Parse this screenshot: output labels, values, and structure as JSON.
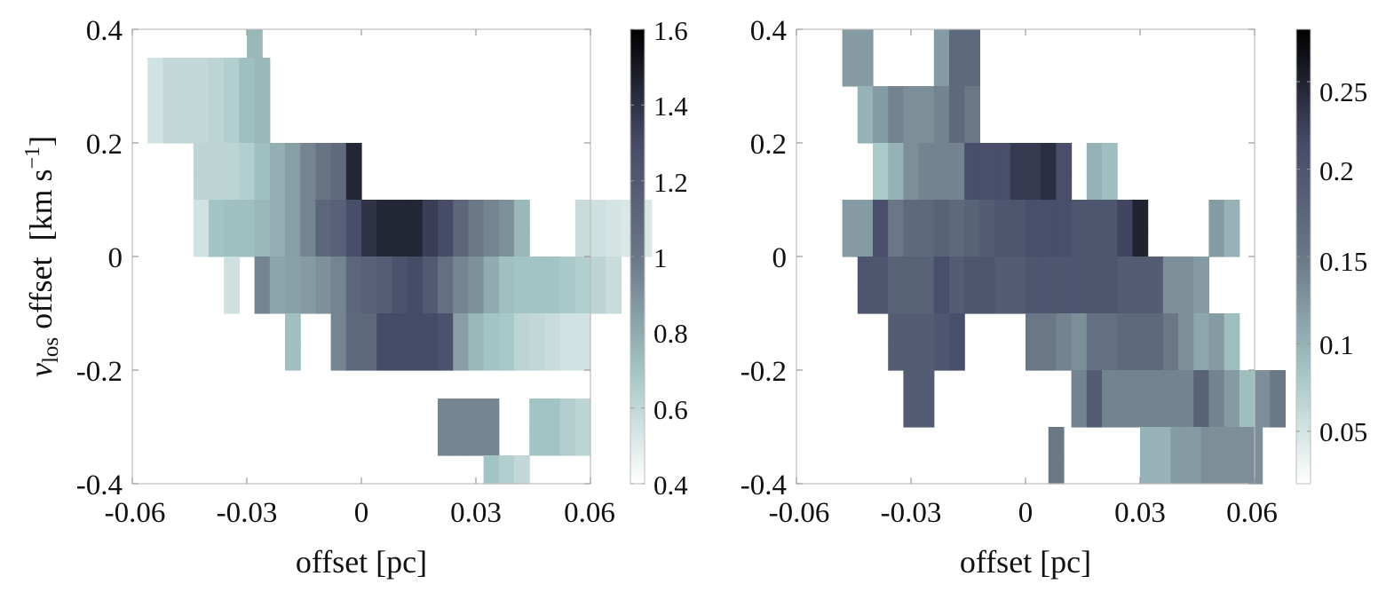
{
  "chart_data": [
    {
      "type": "heatmap",
      "panel": "left",
      "xlabel": "offset [pc]",
      "ylabel_var": "v",
      "ylabel_sub": "los",
      "ylabel_rest": " offset  [km s",
      "ylabel_sup": "−1",
      "ylabel_end": "]",
      "xlim": [
        -0.06,
        0.06
      ],
      "ylim": [
        -0.4,
        0.4
      ],
      "xticks": [
        "-0.06",
        "-0.03",
        "0",
        "0.03",
        "0.06"
      ],
      "yticks": [
        "0.4",
        "0.2",
        "0",
        "-0.2",
        "-0.4"
      ],
      "cbar_ticks": [
        "1.6",
        "1.4",
        "1.2",
        "1",
        "0.8",
        "0.6",
        "0.4"
      ],
      "clim": [
        0.4,
        1.6
      ],
      "colormap": [
        "#ffffff",
        "#a3c4c4",
        "#6a7786",
        "#464b68",
        "#000000"
      ],
      "cell_size": {
        "dx": 0.004,
        "dy": 0.05
      },
      "rows": [
        {
          "y": 0.375,
          "x0": -0.03,
          "values": [
            0.75
          ]
        },
        {
          "y": 0.325,
          "x0": -0.056,
          "values": [
            0.55,
            0.6,
            0.6,
            0.6,
            0.62,
            0.65,
            0.72,
            0.75
          ]
        },
        {
          "y": 0.275,
          "x0": -0.056,
          "values": [
            0.55,
            0.6,
            0.6,
            0.6,
            0.62,
            0.65,
            0.72,
            0.75
          ]
        },
        {
          "y": 0.225,
          "x0": -0.056,
          "values": [
            0.55,
            0.6,
            0.6,
            0.6,
            0.62,
            0.65,
            0.72,
            0.75
          ]
        },
        {
          "y": 0.175,
          "x0": -0.044,
          "values": [
            0.62,
            0.62,
            0.62,
            0.65,
            0.72,
            0.78,
            0.85,
            0.95,
            1.02,
            1.08,
            1.45
          ]
        },
        {
          "y": 0.125,
          "x0": -0.044,
          "values": [
            0.62,
            0.62,
            0.62,
            0.65,
            0.72,
            0.78,
            0.85,
            0.95,
            1.02,
            1.08,
            1.45
          ]
        },
        {
          "y": 0.075,
          "x0": -0.044,
          "values": [
            0.55,
            0.7,
            0.72,
            0.72,
            0.75,
            0.78,
            0.85,
            0.95,
            1.12,
            1.15,
            1.28,
            1.4,
            1.45,
            1.45,
            1.45,
            1.35,
            1.3,
            1.12,
            1.0,
            0.95,
            0.9,
            0.75,
            null,
            null,
            null,
            0.58,
            0.56,
            0.54,
            0.52,
            0.52
          ]
        },
        {
          "y": 0.025,
          "x0": -0.044,
          "values": [
            0.55,
            0.7,
            0.72,
            0.72,
            0.75,
            0.78,
            0.85,
            0.95,
            1.12,
            1.15,
            1.28,
            1.4,
            1.45,
            1.45,
            1.45,
            1.35,
            1.3,
            1.12,
            1.0,
            0.95,
            0.9,
            0.75,
            null,
            null,
            null,
            0.58,
            0.56,
            0.54,
            0.52,
            0.52
          ]
        },
        {
          "y": -0.025,
          "x0": -0.036,
          "values": [
            0.56,
            null,
            0.95,
            0.82,
            0.84,
            0.86,
            0.9,
            0.95,
            1.12,
            1.15,
            1.18,
            1.25,
            1.3,
            1.2,
            1.05,
            0.95,
            0.9,
            0.8,
            0.72,
            0.7,
            0.7,
            0.7,
            0.68,
            0.65,
            0.62,
            0.58
          ]
        },
        {
          "y": -0.075,
          "x0": -0.036,
          "values": [
            0.56,
            null,
            0.95,
            0.82,
            0.84,
            0.86,
            0.9,
            0.95,
            1.12,
            1.15,
            1.18,
            1.25,
            1.3,
            1.2,
            1.05,
            0.95,
            0.9,
            0.8,
            0.72,
            0.7,
            0.7,
            0.7,
            0.68,
            0.65,
            0.62,
            0.58
          ]
        },
        {
          "y": -0.125,
          "x0": -0.02,
          "values": [
            0.72,
            null,
            null,
            0.95,
            1.1,
            1.1,
            1.3,
            1.3,
            1.3,
            1.3,
            1.25,
            0.85,
            0.75,
            0.7,
            0.68,
            0.62,
            0.6,
            0.58,
            0.55,
            0.55
          ]
        },
        {
          "y": -0.175,
          "x0": -0.02,
          "values": [
            0.72,
            null,
            null,
            0.95,
            1.1,
            1.1,
            1.3,
            1.3,
            1.3,
            1.3,
            1.25,
            0.85,
            0.75,
            0.7,
            0.68,
            0.62,
            0.6,
            0.58,
            0.55,
            0.55
          ]
        },
        {
          "y": -0.275,
          "x0": 0.02,
          "values": [
            0.95,
            0.95,
            0.95,
            0.95,
            null,
            null,
            0.7,
            0.7,
            0.65,
            0.62
          ]
        },
        {
          "y": -0.325,
          "x0": 0.02,
          "values": [
            0.95,
            0.95,
            0.95,
            0.95,
            null,
            null,
            0.7,
            0.7,
            0.65,
            0.62
          ]
        },
        {
          "y": -0.375,
          "x0": 0.032,
          "values": [
            0.7,
            0.65,
            0.6,
            null
          ]
        }
      ]
    },
    {
      "type": "heatmap",
      "panel": "right",
      "xlabel": "offset [pc]",
      "xlim": [
        -0.06,
        0.06
      ],
      "ylim": [
        -0.4,
        0.4
      ],
      "xticks": [
        "-0.06",
        "-0.03",
        "0",
        "0.03",
        "0.06"
      ],
      "yticks": [
        "0.4",
        "0.2",
        "0",
        "-0.2",
        "-0.4"
      ],
      "cbar_ticks": [
        "0.25",
        "0.2",
        "0.15",
        "0.1",
        "0.05"
      ],
      "clim": [
        0.02,
        0.28
      ],
      "colormap": [
        "#ffffff",
        "#a3c4c4",
        "#6a7786",
        "#464b68",
        "#000000"
      ],
      "cell_size": {
        "dx": 0.004,
        "dy": 0.05
      },
      "rows": [
        {
          "y": 0.35,
          "h": 0.1,
          "x0": -0.048,
          "values": [
            0.12,
            0.12,
            null,
            null,
            null,
            null,
            0.12,
            0.17,
            0.17
          ]
        },
        {
          "y": 0.275,
          "x0": -0.044,
          "values": [
            0.1,
            0.12,
            0.14,
            0.13,
            0.13,
            0.14,
            0.17,
            0.15
          ]
        },
        {
          "y": 0.225,
          "x0": -0.044,
          "values": [
            0.1,
            0.12,
            0.14,
            0.13,
            0.13,
            0.14,
            0.17,
            0.15
          ]
        },
        {
          "y": 0.175,
          "x0": -0.04,
          "values": [
            0.08,
            0.1,
            0.13,
            0.14,
            0.14,
            0.14,
            0.21,
            0.21,
            0.21,
            0.23,
            0.23,
            0.24,
            0.21,
            null,
            0.1,
            0.09
          ]
        },
        {
          "y": 0.125,
          "x0": -0.04,
          "values": [
            0.08,
            0.1,
            0.13,
            0.14,
            0.14,
            0.14,
            0.21,
            0.21,
            0.21,
            0.23,
            0.23,
            0.24,
            0.21,
            null,
            0.1,
            0.09
          ]
        },
        {
          "y": 0.075,
          "x0": -0.048,
          "values": [
            0.12,
            0.12,
            0.21,
            0.15,
            0.17,
            0.17,
            0.18,
            0.17,
            0.18,
            0.19,
            0.2,
            0.2,
            0.21,
            0.21,
            0.21,
            0.2,
            0.2,
            0.2,
            0.22,
            0.25,
            null,
            null,
            null,
            null,
            0.12,
            0.1
          ]
        },
        {
          "y": 0.025,
          "x0": -0.048,
          "values": [
            0.12,
            0.12,
            0.21,
            0.15,
            0.17,
            0.17,
            0.18,
            0.17,
            0.18,
            0.19,
            0.2,
            0.2,
            0.21,
            0.21,
            0.21,
            0.2,
            0.2,
            0.2,
            0.22,
            0.25,
            null,
            null,
            null,
            null,
            0.12,
            0.1
          ]
        },
        {
          "y": -0.025,
          "x0": -0.044,
          "values": [
            0.2,
            0.2,
            0.18,
            0.18,
            0.18,
            0.21,
            0.19,
            0.2,
            0.2,
            0.19,
            0.19,
            0.2,
            0.2,
            0.2,
            0.2,
            0.2,
            0.2,
            0.19,
            0.19,
            0.19,
            0.13,
            0.13,
            0.12
          ]
        },
        {
          "y": -0.075,
          "x0": -0.044,
          "values": [
            0.2,
            0.2,
            0.18,
            0.18,
            0.18,
            0.21,
            0.19,
            0.2,
            0.2,
            0.19,
            0.19,
            0.2,
            0.2,
            0.2,
            0.2,
            0.2,
            0.2,
            0.19,
            0.19,
            0.19,
            0.13,
            0.13,
            0.12
          ]
        },
        {
          "y": -0.125,
          "x0": -0.036,
          "values": [
            0.19,
            0.19,
            0.19,
            0.2,
            0.21,
            null,
            null,
            null,
            null,
            0.15,
            0.15,
            0.14,
            0.13,
            0.16,
            0.16,
            0.17,
            0.17,
            0.17,
            0.15,
            0.13,
            0.11,
            0.12,
            0.09
          ]
        },
        {
          "y": -0.175,
          "x0": -0.036,
          "values": [
            0.19,
            0.19,
            0.19,
            0.2,
            0.21,
            null,
            null,
            null,
            null,
            0.15,
            0.15,
            0.14,
            0.13,
            0.16,
            0.16,
            0.17,
            0.17,
            0.17,
            0.15,
            0.13,
            0.11,
            0.12,
            0.09
          ]
        },
        {
          "y": -0.25,
          "h": 0.1,
          "x0": -0.032,
          "values": [
            0.19,
            0.19,
            null,
            null,
            null,
            null,
            null,
            null,
            null,
            null,
            null,
            0.14,
            0.19,
            0.14,
            0.14,
            0.14,
            0.14,
            0.14,
            0.14,
            0.18,
            0.14,
            0.12,
            0.09,
            0.13,
            0.15
          ]
        },
        {
          "y": -0.325,
          "x0": 0.006,
          "values": [
            0.15,
            null,
            null,
            null,
            null,
            null,
            0.1,
            0.1,
            0.12,
            0.12,
            0.13,
            0.13,
            0.13,
            0.13
          ]
        },
        {
          "y": -0.375,
          "x0": 0.006,
          "values": [
            0.15,
            null,
            null,
            null,
            null,
            null,
            0.1,
            0.1,
            0.12,
            0.12,
            0.13,
            0.13,
            0.13,
            0.13
          ]
        }
      ]
    }
  ]
}
